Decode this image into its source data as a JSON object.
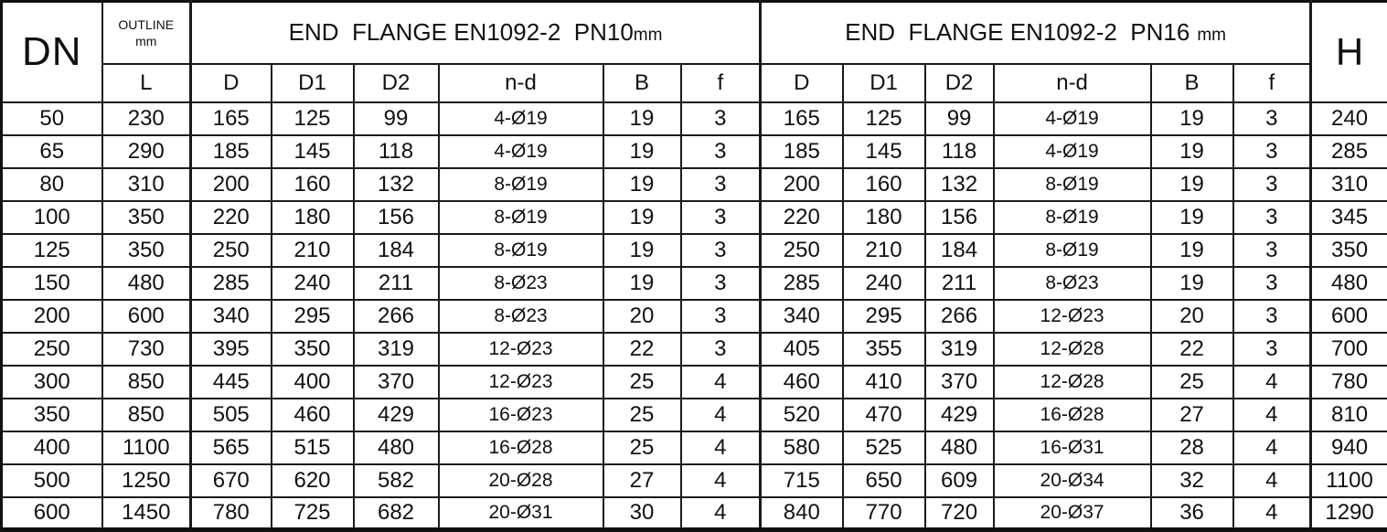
{
  "table": {
    "header": {
      "dn": "DN",
      "outline_label": "OUTLINE",
      "outline_unit": "mm",
      "l": "L",
      "pn10_title": "END  FLANGE EN1092-2  PN10",
      "pn10_unit": "mm",
      "pn16_title": "END  FLANGE EN1092-2  PN16",
      "pn16_unit": "mm",
      "sub_columns": [
        "D",
        "D1",
        "D2",
        "n-d",
        "B",
        "f"
      ],
      "h": "H"
    },
    "rows": [
      [
        "50",
        "230",
        "165",
        "125",
        "99",
        "4-Ø19",
        "19",
        "3",
        "165",
        "125",
        "99",
        "4-Ø19",
        "19",
        "3",
        "240"
      ],
      [
        "65",
        "290",
        "185",
        "145",
        "118",
        "4-Ø19",
        "19",
        "3",
        "185",
        "145",
        "118",
        "4-Ø19",
        "19",
        "3",
        "285"
      ],
      [
        "80",
        "310",
        "200",
        "160",
        "132",
        "8-Ø19",
        "19",
        "3",
        "200",
        "160",
        "132",
        "8-Ø19",
        "19",
        "3",
        "310"
      ],
      [
        "100",
        "350",
        "220",
        "180",
        "156",
        "8-Ø19",
        "19",
        "3",
        "220",
        "180",
        "156",
        "8-Ø19",
        "19",
        "3",
        "345"
      ],
      [
        "125",
        "350",
        "250",
        "210",
        "184",
        "8-Ø19",
        "19",
        "3",
        "250",
        "210",
        "184",
        "8-Ø19",
        "19",
        "3",
        "350"
      ],
      [
        "150",
        "480",
        "285",
        "240",
        "211",
        "8-Ø23",
        "19",
        "3",
        "285",
        "240",
        "211",
        "8-Ø23",
        "19",
        "3",
        "480"
      ],
      [
        "200",
        "600",
        "340",
        "295",
        "266",
        "8-Ø23",
        "20",
        "3",
        "340",
        "295",
        "266",
        "12-Ø23",
        "20",
        "3",
        "600"
      ],
      [
        "250",
        "730",
        "395",
        "350",
        "319",
        "12-Ø23",
        "22",
        "3",
        "405",
        "355",
        "319",
        "12-Ø28",
        "22",
        "3",
        "700"
      ],
      [
        "300",
        "850",
        "445",
        "400",
        "370",
        "12-Ø23",
        "25",
        "4",
        "460",
        "410",
        "370",
        "12-Ø28",
        "25",
        "4",
        "780"
      ],
      [
        "350",
        "850",
        "505",
        "460",
        "429",
        "16-Ø23",
        "25",
        "4",
        "520",
        "470",
        "429",
        "16-Ø28",
        "27",
        "4",
        "810"
      ],
      [
        "400",
        "1100",
        "565",
        "515",
        "480",
        "16-Ø28",
        "25",
        "4",
        "580",
        "525",
        "480",
        "16-Ø31",
        "28",
        "4",
        "940"
      ],
      [
        "500",
        "1250",
        "670",
        "620",
        "582",
        "20-Ø28",
        "27",
        "4",
        "715",
        "650",
        "609",
        "20-Ø34",
        "32",
        "4",
        "1100"
      ],
      [
        "600",
        "1450",
        "780",
        "725",
        "682",
        "20-Ø31",
        "30",
        "4",
        "840",
        "770",
        "720",
        "20-Ø37",
        "36",
        "4",
        "1290"
      ]
    ]
  },
  "colors": {
    "border": "#1a1a1a",
    "text": "#111111",
    "background": "#ffffff"
  }
}
